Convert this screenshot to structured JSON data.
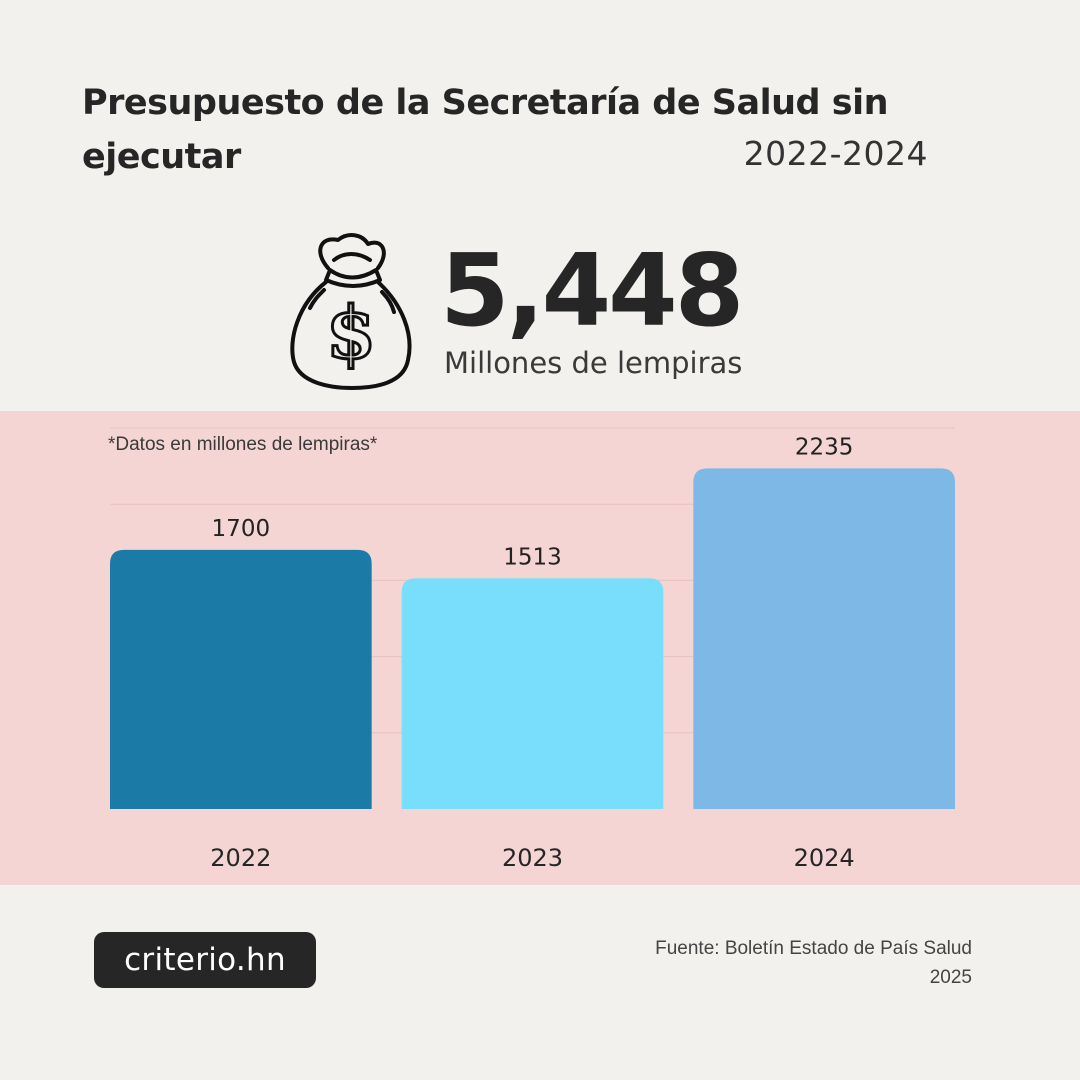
{
  "header": {
    "title": "Presupuesto de la Secretaría de Salud sin ejecutar",
    "subtitle": "2022-2024"
  },
  "highlight": {
    "icon": "money-bag-icon",
    "value": "5,448",
    "unit": "Millones de lempiras"
  },
  "chart_data": {
    "type": "bar",
    "note": "*Datos en millones de lempiras*",
    "categories": [
      "2022",
      "2023",
      "2024"
    ],
    "values": [
      1700,
      1513,
      2235
    ],
    "data_labels": [
      "1700",
      "1513",
      "2235"
    ],
    "colors": [
      "#1b7aa6",
      "#78defc",
      "#7db8e6"
    ],
    "ylim": [
      0,
      2500
    ],
    "grid": true,
    "legend": "none"
  },
  "footer": {
    "brand": "criterio.hn",
    "source": "Fuente: Boletín Estado de País Salud 2025"
  },
  "colors": {
    "background": "#f2f1ee",
    "band": "#f4d5d3",
    "text": "#262626"
  }
}
